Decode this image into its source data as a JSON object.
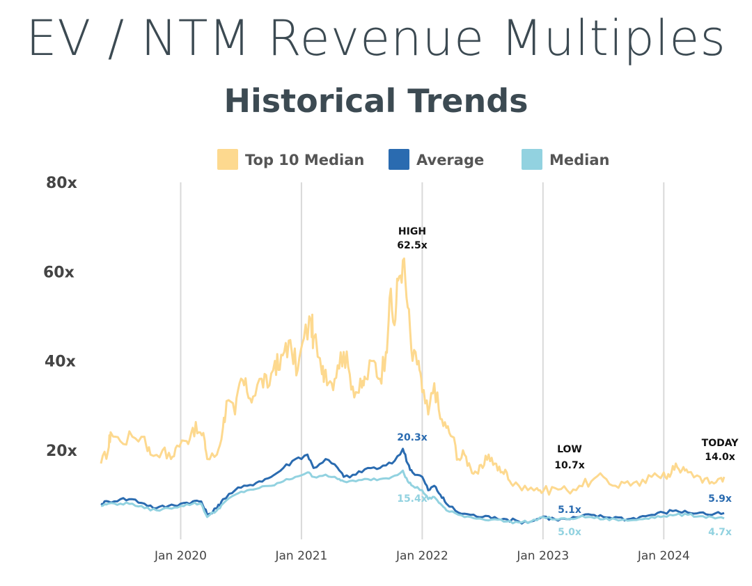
{
  "header": {
    "title": "EV / NTM Revenue Multiples",
    "subtitle": "Historical Trends"
  },
  "chart_data": {
    "type": "line",
    "y_ticks": [
      "80x",
      "60x",
      "40x",
      "20x"
    ],
    "ylim": [
      0,
      80
    ],
    "x_ticks": [
      "Jan 2020",
      "Jan 2021",
      "Jan 2022",
      "Jan 2023",
      "Jan 2024"
    ],
    "x_tick_values": [
      2020.0,
      2021.0,
      2022.0,
      2023.0,
      2024.0
    ],
    "xlim": [
      2019.34,
      2024.5
    ],
    "grid": "vertical",
    "legend_position": "top",
    "series": [
      {
        "name": "Top 10 Median",
        "color": "#fdd98f",
        "points": [
          [
            2019.34,
            17
          ],
          [
            2019.4,
            20
          ],
          [
            2019.42,
            24
          ],
          [
            2019.5,
            22
          ],
          [
            2019.6,
            23
          ],
          [
            2019.7,
            23
          ],
          [
            2019.75,
            19
          ],
          [
            2019.85,
            20
          ],
          [
            2019.92,
            18
          ],
          [
            2019.97,
            21
          ],
          [
            2020.05,
            22
          ],
          [
            2020.1,
            25
          ],
          [
            2020.15,
            24
          ],
          [
            2020.2,
            22
          ],
          [
            2020.22,
            18
          ],
          [
            2020.3,
            19
          ],
          [
            2020.35,
            25
          ],
          [
            2020.38,
            31
          ],
          [
            2020.45,
            28
          ],
          [
            2020.5,
            36
          ],
          [
            2020.55,
            33
          ],
          [
            2020.6,
            32
          ],
          [
            2020.67,
            36
          ],
          [
            2020.72,
            34
          ],
          [
            2020.78,
            40
          ],
          [
            2020.82,
            38
          ],
          [
            2020.87,
            44
          ],
          [
            2020.92,
            42
          ],
          [
            2020.97,
            38
          ],
          [
            2021.02,
            45
          ],
          [
            2021.08,
            49
          ],
          [
            2021.1,
            45
          ],
          [
            2021.17,
            37
          ],
          [
            2021.2,
            38
          ],
          [
            2021.25,
            35
          ],
          [
            2021.3,
            39
          ],
          [
            2021.35,
            42
          ],
          [
            2021.4,
            37
          ],
          [
            2021.45,
            33
          ],
          [
            2021.5,
            34
          ],
          [
            2021.53,
            36
          ],
          [
            2021.6,
            40
          ],
          [
            2021.65,
            36
          ],
          [
            2021.7,
            42
          ],
          [
            2021.73,
            54
          ],
          [
            2021.77,
            48
          ],
          [
            2021.8,
            58
          ],
          [
            2021.84,
            62.5
          ],
          [
            2021.88,
            52
          ],
          [
            2021.92,
            40
          ],
          [
            2021.97,
            40
          ],
          [
            2022.0,
            33
          ],
          [
            2022.05,
            28
          ],
          [
            2022.1,
            35
          ],
          [
            2022.15,
            27
          ],
          [
            2022.2,
            25
          ],
          [
            2022.25,
            23
          ],
          [
            2022.3,
            18
          ],
          [
            2022.35,
            19
          ],
          [
            2022.4,
            16
          ],
          [
            2022.45,
            15
          ],
          [
            2022.5,
            16
          ],
          [
            2022.55,
            19
          ],
          [
            2022.6,
            17
          ],
          [
            2022.65,
            15
          ],
          [
            2022.7,
            15
          ],
          [
            2022.75,
            12
          ],
          [
            2022.85,
            12
          ],
          [
            2022.95,
            11.5
          ],
          [
            2023.0,
            10.7
          ],
          [
            2023.1,
            11.5
          ],
          [
            2023.2,
            11
          ],
          [
            2023.3,
            12
          ],
          [
            2023.4,
            13
          ],
          [
            2023.5,
            14
          ],
          [
            2023.6,
            12
          ],
          [
            2023.7,
            13
          ],
          [
            2023.8,
            12
          ],
          [
            2023.9,
            14
          ],
          [
            2024.0,
            15
          ],
          [
            2024.05,
            14
          ],
          [
            2024.1,
            17
          ],
          [
            2024.15,
            15.5
          ],
          [
            2024.2,
            15
          ],
          [
            2024.3,
            14
          ],
          [
            2024.38,
            12.5
          ],
          [
            2024.45,
            13.5
          ],
          [
            2024.5,
            14.0
          ]
        ]
      },
      {
        "name": "Average",
        "color": "#2a6bb0",
        "points": [
          [
            2019.34,
            8
          ],
          [
            2019.4,
            8.5
          ],
          [
            2019.5,
            9
          ],
          [
            2019.6,
            9
          ],
          [
            2019.7,
            8
          ],
          [
            2019.8,
            7
          ],
          [
            2019.9,
            7.5
          ],
          [
            2020.0,
            8
          ],
          [
            2020.1,
            8.5
          ],
          [
            2020.17,
            8.5
          ],
          [
            2020.22,
            5.5
          ],
          [
            2020.3,
            7
          ],
          [
            2020.35,
            9
          ],
          [
            2020.45,
            11
          ],
          [
            2020.55,
            12
          ],
          [
            2020.65,
            13
          ],
          [
            2020.75,
            14
          ],
          [
            2020.85,
            16
          ],
          [
            2020.95,
            18
          ],
          [
            2021.05,
            19
          ],
          [
            2021.1,
            16
          ],
          [
            2021.2,
            18
          ],
          [
            2021.3,
            16
          ],
          [
            2021.35,
            14
          ],
          [
            2021.45,
            14.5
          ],
          [
            2021.55,
            16
          ],
          [
            2021.65,
            16
          ],
          [
            2021.75,
            17
          ],
          [
            2021.84,
            20.3
          ],
          [
            2021.88,
            17
          ],
          [
            2021.92,
            15
          ],
          [
            2022.0,
            14
          ],
          [
            2022.05,
            11
          ],
          [
            2022.1,
            12
          ],
          [
            2022.15,
            10
          ],
          [
            2022.2,
            8
          ],
          [
            2022.3,
            6
          ],
          [
            2022.4,
            5.5
          ],
          [
            2022.5,
            5
          ],
          [
            2022.6,
            5
          ],
          [
            2022.7,
            4.5
          ],
          [
            2022.8,
            4
          ],
          [
            2022.9,
            4
          ],
          [
            2023.0,
            5.1
          ],
          [
            2023.1,
            4.5
          ],
          [
            2023.2,
            4.5
          ],
          [
            2023.3,
            5
          ],
          [
            2023.4,
            5.5
          ],
          [
            2023.5,
            5
          ],
          [
            2023.6,
            5
          ],
          [
            2023.7,
            4.5
          ],
          [
            2023.8,
            5
          ],
          [
            2023.9,
            5.5
          ],
          [
            2024.0,
            6
          ],
          [
            2024.1,
            6.5
          ],
          [
            2024.2,
            6
          ],
          [
            2024.3,
            6
          ],
          [
            2024.4,
            5.5
          ],
          [
            2024.5,
            5.9
          ]
        ]
      },
      {
        "name": "Median",
        "color": "#92d2e0",
        "points": [
          [
            2019.34,
            7.5
          ],
          [
            2019.4,
            8
          ],
          [
            2019.5,
            8
          ],
          [
            2019.6,
            8
          ],
          [
            2019.7,
            7
          ],
          [
            2019.8,
            6.5
          ],
          [
            2019.9,
            7
          ],
          [
            2020.0,
            7.5
          ],
          [
            2020.1,
            8
          ],
          [
            2020.17,
            8
          ],
          [
            2020.22,
            5
          ],
          [
            2020.3,
            6.5
          ],
          [
            2020.35,
            8
          ],
          [
            2020.45,
            10
          ],
          [
            2020.55,
            11
          ],
          [
            2020.65,
            11.5
          ],
          [
            2020.75,
            12
          ],
          [
            2020.85,
            13
          ],
          [
            2020.95,
            14
          ],
          [
            2021.05,
            15
          ],
          [
            2021.1,
            14
          ],
          [
            2021.2,
            14.5
          ],
          [
            2021.3,
            13.5
          ],
          [
            2021.35,
            13
          ],
          [
            2021.45,
            13
          ],
          [
            2021.55,
            13.5
          ],
          [
            2021.65,
            13.5
          ],
          [
            2021.75,
            14
          ],
          [
            2021.84,
            15.4
          ],
          [
            2021.88,
            13
          ],
          [
            2021.92,
            12
          ],
          [
            2022.0,
            11
          ],
          [
            2022.05,
            9
          ],
          [
            2022.1,
            9.5
          ],
          [
            2022.15,
            8
          ],
          [
            2022.2,
            6.5
          ],
          [
            2022.3,
            5.5
          ],
          [
            2022.4,
            5
          ],
          [
            2022.5,
            4.5
          ],
          [
            2022.6,
            4.5
          ],
          [
            2022.7,
            4
          ],
          [
            2022.8,
            3.8
          ],
          [
            2022.9,
            4
          ],
          [
            2023.0,
            5.0
          ],
          [
            2023.1,
            4.5
          ],
          [
            2023.2,
            4.5
          ],
          [
            2023.3,
            5
          ],
          [
            2023.4,
            5
          ],
          [
            2023.5,
            4.5
          ],
          [
            2023.6,
            4.5
          ],
          [
            2023.7,
            4.2
          ],
          [
            2023.8,
            4.5
          ],
          [
            2023.9,
            5
          ],
          [
            2024.0,
            5.2
          ],
          [
            2024.1,
            5.5
          ],
          [
            2024.2,
            5.5
          ],
          [
            2024.3,
            5.2
          ],
          [
            2024.4,
            5
          ],
          [
            2024.5,
            4.7
          ]
        ]
      }
    ],
    "annotations": [
      {
        "text": "HIGH",
        "x": 2021.84,
        "y": 62.5,
        "color": "#111111"
      },
      {
        "text": "62.5x",
        "x": 2021.84,
        "y": 62.5,
        "color": "#111111"
      },
      {
        "text": "20.3x",
        "x": 2021.84,
        "y": 20.3,
        "color": "#2a6bb0"
      },
      {
        "text": "15.4x",
        "x": 2021.84,
        "y": 15.4,
        "color": "#92d2e0"
      },
      {
        "text": "LOW",
        "x": 2023.0,
        "y": 10.7,
        "color": "#111111"
      },
      {
        "text": "10.7x",
        "x": 2023.0,
        "y": 10.7,
        "color": "#111111"
      },
      {
        "text": "5.1x",
        "x": 2023.0,
        "y": 5.1,
        "color": "#2a6bb0"
      },
      {
        "text": "5.0x",
        "x": 2023.0,
        "y": 5.0,
        "color": "#92d2e0"
      },
      {
        "text": "TODAY",
        "x": 2024.5,
        "y": 14.0,
        "color": "#111111"
      },
      {
        "text": "14.0x",
        "x": 2024.5,
        "y": 14.0,
        "color": "#111111"
      },
      {
        "text": "5.9x",
        "x": 2024.5,
        "y": 5.9,
        "color": "#2a6bb0"
      },
      {
        "text": "4.7x",
        "x": 2024.5,
        "y": 4.7,
        "color": "#92d2e0"
      }
    ]
  }
}
